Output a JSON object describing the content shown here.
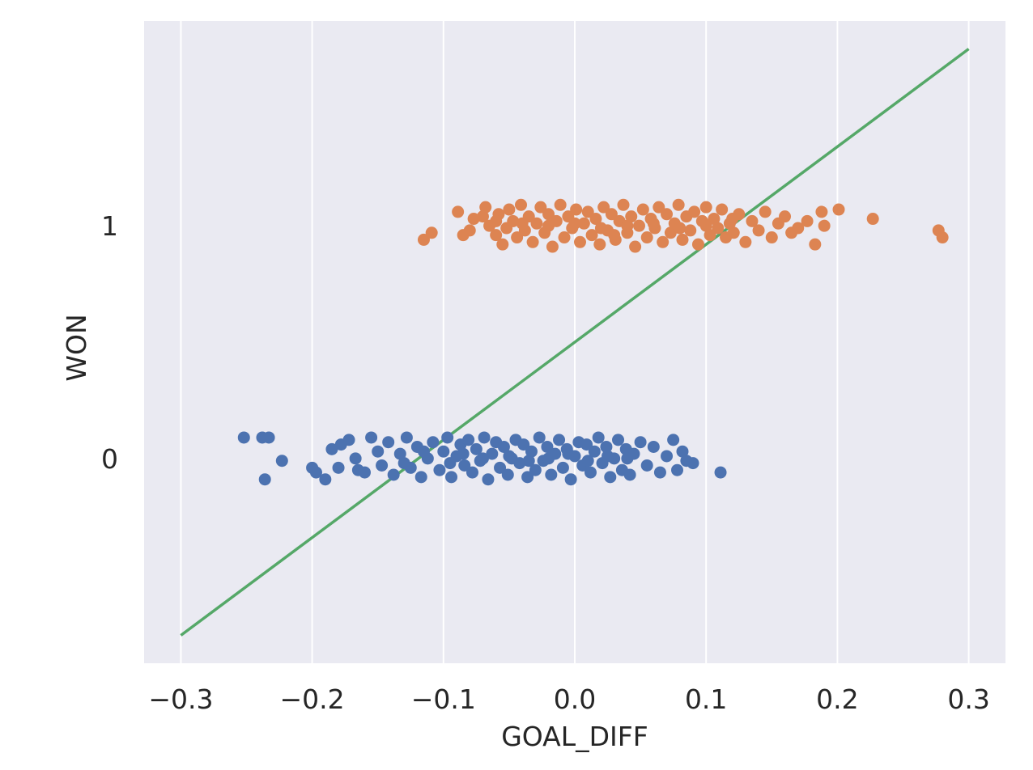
{
  "chart_data": {
    "type": "scatter",
    "title": "",
    "xlabel": "GOAL_DIFF",
    "ylabel": "WON",
    "xlim": [
      -0.328,
      0.328
    ],
    "ylim": [
      -0.88,
      1.88
    ],
    "grid": "vertical",
    "x_ticks": [
      -0.3,
      -0.2,
      -0.1,
      0.0,
      0.1,
      0.2,
      0.3
    ],
    "x_tick_labels": [
      "−0.3",
      "−0.2",
      "−0.1",
      "0.0",
      "0.1",
      "0.2",
      "0.3"
    ],
    "y_ticks": [
      0,
      1
    ],
    "y_tick_labels": [
      "0",
      "1"
    ],
    "colors": {
      "background": "#eaeaf2",
      "grid": "#ffffff",
      "series_0": "#4c72b0",
      "series_1": "#dd8452",
      "fit_line": "#55a868"
    },
    "series": [
      {
        "color": "#4c72b0",
        "points": [
          [
            -0.252,
            0.09
          ],
          [
            -0.238,
            0.09
          ],
          [
            -0.233,
            0.09
          ],
          [
            -0.236,
            -0.09
          ],
          [
            -0.223,
            -0.01
          ],
          [
            -0.2,
            -0.04
          ],
          [
            -0.197,
            -0.06
          ],
          [
            -0.19,
            -0.09
          ],
          [
            -0.18,
            -0.04
          ],
          [
            -0.185,
            0.04
          ],
          [
            -0.178,
            0.06
          ],
          [
            -0.172,
            0.08
          ],
          [
            -0.167,
            0.0
          ],
          [
            -0.16,
            -0.06
          ],
          [
            -0.155,
            0.09
          ],
          [
            -0.15,
            0.03
          ],
          [
            -0.147,
            -0.03
          ],
          [
            -0.142,
            0.07
          ],
          [
            -0.138,
            -0.07
          ],
          [
            -0.133,
            0.02
          ],
          [
            -0.128,
            0.09
          ],
          [
            -0.125,
            -0.04
          ],
          [
            -0.12,
            0.05
          ],
          [
            -0.117,
            -0.08
          ],
          [
            -0.112,
            0.0
          ],
          [
            -0.108,
            0.07
          ],
          [
            -0.103,
            -0.05
          ],
          [
            -0.1,
            0.03
          ],
          [
            -0.097,
            0.09
          ],
          [
            -0.094,
            -0.08
          ],
          [
            -0.09,
            0.01
          ],
          [
            -0.087,
            0.06
          ],
          [
            -0.084,
            -0.03
          ],
          [
            -0.081,
            0.08
          ],
          [
            -0.078,
            -0.06
          ],
          [
            -0.075,
            0.04
          ],
          [
            -0.072,
            -0.01
          ],
          [
            -0.069,
            0.09
          ],
          [
            -0.066,
            -0.09
          ],
          [
            -0.063,
            0.02
          ],
          [
            -0.06,
            0.07
          ],
          [
            -0.057,
            -0.04
          ],
          [
            -0.054,
            0.05
          ],
          [
            -0.051,
            -0.07
          ],
          [
            -0.048,
            0.0
          ],
          [
            -0.045,
            0.08
          ],
          [
            -0.042,
            -0.02
          ],
          [
            -0.039,
            0.06
          ],
          [
            -0.036,
            -0.08
          ],
          [
            -0.033,
            0.03
          ],
          [
            -0.03,
            -0.05
          ],
          [
            -0.027,
            0.09
          ],
          [
            -0.024,
            -0.01
          ],
          [
            -0.021,
            0.05
          ],
          [
            -0.018,
            -0.07
          ],
          [
            -0.015,
            0.02
          ],
          [
            -0.012,
            0.08
          ],
          [
            -0.009,
            -0.04
          ],
          [
            -0.006,
            0.04
          ],
          [
            -0.003,
            -0.09
          ],
          [
            0.0,
            0.01
          ],
          [
            0.003,
            0.07
          ],
          [
            0.006,
            -0.03
          ],
          [
            0.009,
            0.06
          ],
          [
            0.012,
            -0.06
          ],
          [
            0.015,
            0.03
          ],
          [
            0.018,
            0.09
          ],
          [
            0.021,
            -0.02
          ],
          [
            0.024,
            0.05
          ],
          [
            0.027,
            -0.08
          ],
          [
            0.03,
            0.0
          ],
          [
            0.033,
            0.08
          ],
          [
            0.036,
            -0.05
          ],
          [
            0.039,
            0.04
          ],
          [
            0.042,
            -0.07
          ],
          [
            0.045,
            0.02
          ],
          [
            0.05,
            0.07
          ],
          [
            0.055,
            -0.03
          ],
          [
            0.06,
            0.05
          ],
          [
            0.065,
            -0.06
          ],
          [
            0.07,
            0.01
          ],
          [
            0.075,
            0.08
          ],
          [
            0.078,
            -0.05
          ],
          [
            0.082,
            0.03
          ],
          [
            0.085,
            -0.01
          ],
          [
            0.09,
            -0.02
          ],
          [
            0.111,
            -0.06
          ],
          [
            -0.095,
            -0.02
          ],
          [
            -0.085,
            0.02
          ],
          [
            -0.07,
            0.0
          ],
          [
            -0.05,
            0.01
          ],
          [
            -0.035,
            -0.01
          ],
          [
            -0.02,
            0.0
          ],
          [
            -0.005,
            0.02
          ],
          [
            0.01,
            -0.01
          ],
          [
            0.025,
            0.01
          ],
          [
            0.04,
            0.0
          ],
          [
            -0.115,
            0.03
          ],
          [
            -0.13,
            -0.02
          ],
          [
            -0.165,
            -0.05
          ]
        ]
      },
      {
        "color": "#dd8452",
        "points": [
          [
            -0.115,
            0.94
          ],
          [
            -0.109,
            0.97
          ],
          [
            -0.089,
            1.06
          ],
          [
            -0.085,
            0.96
          ],
          [
            -0.08,
            0.98
          ],
          [
            -0.077,
            1.03
          ],
          [
            -0.07,
            1.04
          ],
          [
            -0.068,
            1.08
          ],
          [
            -0.065,
            1.0
          ],
          [
            -0.06,
            0.96
          ],
          [
            -0.058,
            1.05
          ],
          [
            -0.055,
            0.92
          ],
          [
            -0.052,
            0.99
          ],
          [
            -0.05,
            1.07
          ],
          [
            -0.047,
            1.02
          ],
          [
            -0.044,
            0.95
          ],
          [
            -0.041,
            1.09
          ],
          [
            -0.038,
            0.98
          ],
          [
            -0.035,
            1.04
          ],
          [
            -0.032,
            0.93
          ],
          [
            -0.029,
            1.01
          ],
          [
            -0.026,
            1.08
          ],
          [
            -0.023,
            0.97
          ],
          [
            -0.02,
            1.05
          ],
          [
            -0.017,
            0.91
          ],
          [
            -0.014,
            1.02
          ],
          [
            -0.011,
            1.09
          ],
          [
            -0.008,
            0.95
          ],
          [
            -0.005,
            1.04
          ],
          [
            -0.002,
            0.99
          ],
          [
            0.001,
            1.07
          ],
          [
            0.004,
            0.93
          ],
          [
            0.007,
            1.01
          ],
          [
            0.01,
            1.06
          ],
          [
            0.013,
            0.96
          ],
          [
            0.016,
            1.03
          ],
          [
            0.019,
            0.92
          ],
          [
            0.022,
            1.08
          ],
          [
            0.025,
            0.98
          ],
          [
            0.028,
            1.05
          ],
          [
            0.031,
            0.94
          ],
          [
            0.034,
            1.02
          ],
          [
            0.037,
            1.09
          ],
          [
            0.04,
            0.97
          ],
          [
            0.043,
            1.04
          ],
          [
            0.046,
            0.91
          ],
          [
            0.049,
            1.0
          ],
          [
            0.052,
            1.07
          ],
          [
            0.055,
            0.95
          ],
          [
            0.058,
            1.03
          ],
          [
            0.061,
            0.99
          ],
          [
            0.064,
            1.08
          ],
          [
            0.067,
            0.93
          ],
          [
            0.07,
            1.05
          ],
          [
            0.073,
            0.97
          ],
          [
            0.076,
            1.01
          ],
          [
            0.079,
            1.09
          ],
          [
            0.082,
            0.94
          ],
          [
            0.085,
            1.04
          ],
          [
            0.088,
            0.98
          ],
          [
            0.091,
            1.06
          ],
          [
            0.094,
            0.92
          ],
          [
            0.097,
            1.02
          ],
          [
            0.1,
            1.08
          ],
          [
            0.103,
            0.96
          ],
          [
            0.106,
            1.03
          ],
          [
            0.109,
            0.99
          ],
          [
            0.112,
            1.07
          ],
          [
            0.115,
            0.95
          ],
          [
            0.118,
            1.01
          ],
          [
            0.121,
            0.97
          ],
          [
            0.125,
            1.05
          ],
          [
            0.13,
            0.93
          ],
          [
            0.135,
            1.02
          ],
          [
            0.14,
            0.98
          ],
          [
            0.145,
            1.06
          ],
          [
            0.15,
            0.95
          ],
          [
            0.155,
            1.01
          ],
          [
            0.16,
            1.04
          ],
          [
            0.165,
            0.97
          ],
          [
            0.17,
            0.99
          ],
          [
            0.177,
            1.02
          ],
          [
            0.183,
            0.92
          ],
          [
            0.188,
            1.06
          ],
          [
            0.19,
            1.0
          ],
          [
            0.201,
            1.07
          ],
          [
            0.227,
            1.03
          ],
          [
            0.277,
            0.98
          ],
          [
            0.28,
            0.95
          ],
          [
            -0.02,
            1.0
          ],
          [
            0.0,
            1.01
          ],
          [
            0.02,
            0.99
          ],
          [
            0.04,
            1.0
          ],
          [
            0.06,
            1.01
          ],
          [
            0.08,
            0.99
          ],
          [
            -0.04,
            1.01
          ],
          [
            0.1,
            1.0
          ],
          [
            -0.06,
            1.02
          ],
          [
            0.12,
            1.03
          ],
          [
            0.03,
            0.96
          ]
        ]
      }
    ],
    "fit_line": {
      "color": "#55a868",
      "points": [
        [
          -0.3,
          -0.76
        ],
        [
          0.3,
          1.76
        ]
      ]
    }
  }
}
